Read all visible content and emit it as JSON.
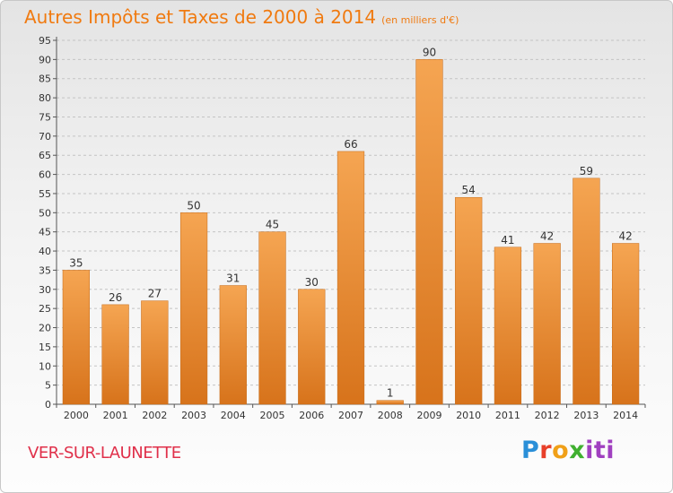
{
  "header": {
    "title": "Autres Impôts et Taxes de 2000 à 2014",
    "unit": "(en milliers d'€)"
  },
  "footer": {
    "commune": "VER-SUR-LAUNETTE",
    "logo_parts": [
      "P",
      "r",
      "o",
      "x",
      "iti"
    ]
  },
  "colors": {
    "bar_top": "#f5a552",
    "bar_bottom": "#d7731b",
    "title": "#f07a10",
    "commune": "#e0304a"
  },
  "chart_data": {
    "type": "bar",
    "title": "Autres Impôts et Taxes de 2000 à 2014",
    "xlabel": "",
    "ylabel": "",
    "categories": [
      "2000",
      "2001",
      "2002",
      "2003",
      "2004",
      "2005",
      "2006",
      "2007",
      "2008",
      "2009",
      "2010",
      "2011",
      "2012",
      "2013",
      "2014"
    ],
    "values": [
      35,
      26,
      27,
      50,
      31,
      45,
      30,
      66,
      1,
      90,
      54,
      41,
      42,
      59,
      42
    ],
    "ylim": [
      0,
      95
    ],
    "yticks": [
      0,
      5,
      10,
      15,
      20,
      25,
      30,
      35,
      40,
      45,
      50,
      55,
      60,
      65,
      70,
      75,
      80,
      85,
      90,
      95
    ],
    "grid": true,
    "legend": "none"
  }
}
